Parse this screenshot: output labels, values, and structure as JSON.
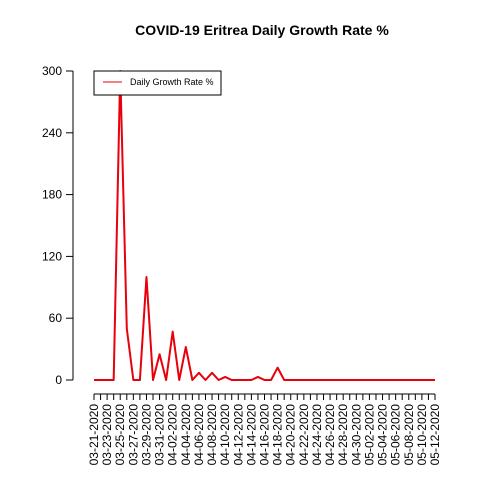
{
  "chart_data": {
    "type": "line",
    "title": "COVID-19 Eritrea Daily Growth Rate %",
    "xlabel": "",
    "ylabel": "",
    "ylim": [
      0,
      300
    ],
    "yticks": [
      0,
      60,
      120,
      180,
      240,
      300
    ],
    "x_start": "2020-03-21",
    "x_end": "2020-05-12",
    "x_tick_labels": [
      "03-21-2020",
      "03-23-2020",
      "03-25-2020",
      "03-27-2020",
      "03-29-2020",
      "03-31-2020",
      "04-02-2020",
      "04-04-2020",
      "04-06-2020",
      "04-08-2020",
      "04-10-2020",
      "04-12-2020",
      "04-14-2020",
      "04-16-2020",
      "04-18-2020",
      "04-20-2020",
      "04-22-2020",
      "04-24-2020",
      "04-26-2020",
      "04-28-2020",
      "04-30-2020",
      "05-02-2020",
      "05-04-2020",
      "05-06-2020",
      "05-08-2020",
      "05-10-2020",
      "05-12-2020"
    ],
    "legend": {
      "position": "top-left",
      "entries": [
        "Daily Growth Rate %"
      ]
    },
    "grid": false,
    "series": [
      {
        "name": "Daily Growth Rate %",
        "color": "#e8000b",
        "values": [
          0,
          0,
          0,
          0,
          300,
          50,
          0,
          0,
          100,
          0,
          25,
          0,
          47,
          0,
          32,
          0,
          7,
          0,
          7,
          0,
          3,
          0,
          0,
          0,
          0,
          3,
          0,
          0,
          12,
          0,
          0,
          0,
          0,
          0,
          0,
          0,
          0,
          0,
          0,
          0,
          0,
          0,
          0,
          0,
          0,
          0,
          0,
          0,
          0,
          0,
          0,
          0,
          0
        ]
      }
    ]
  }
}
